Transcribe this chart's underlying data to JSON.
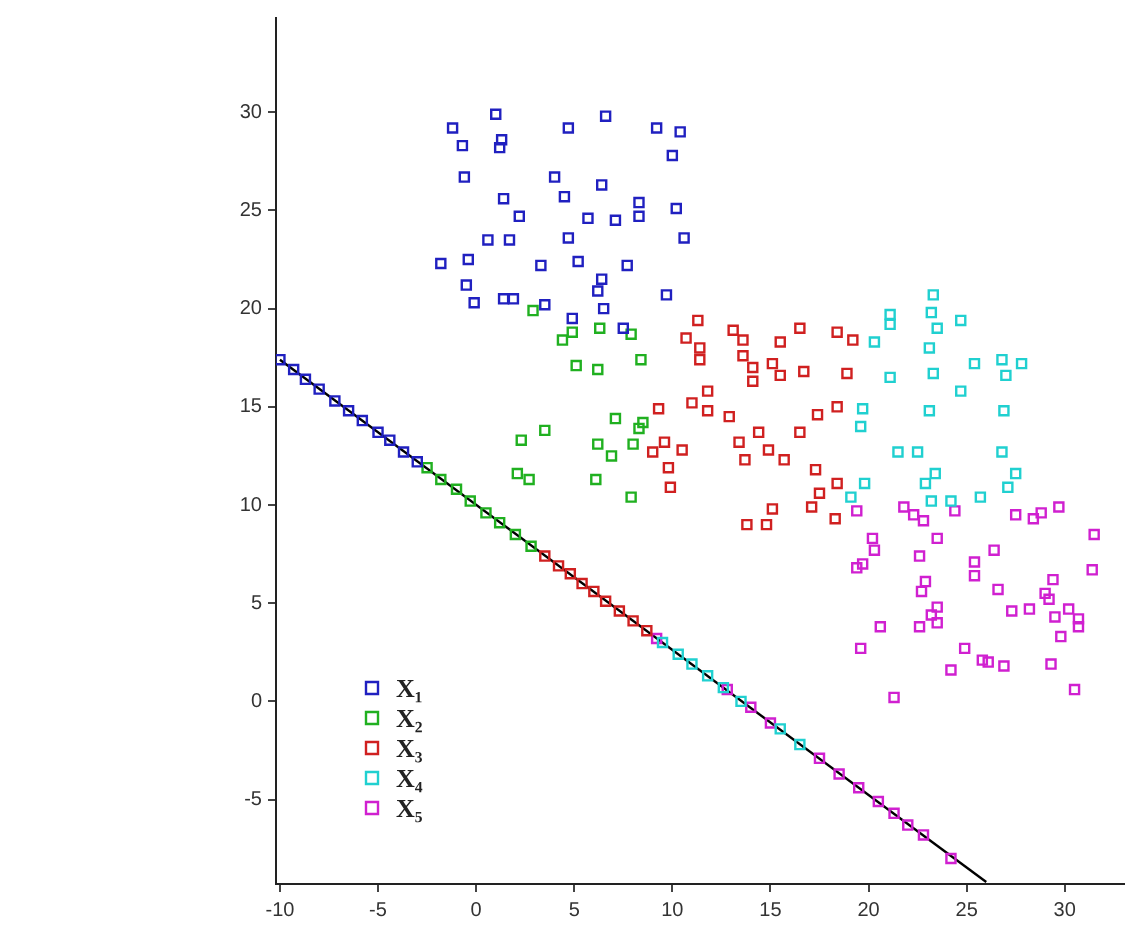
{
  "chart_data": {
    "type": "scatter",
    "xlim": [
      -10.2,
      33
    ],
    "ylim": [
      -9.3,
      34.8
    ],
    "xticks": [
      -10,
      -5,
      0,
      5,
      10,
      15,
      20,
      25,
      30
    ],
    "yticks": [
      -5,
      0,
      5,
      10,
      15,
      20,
      25,
      30
    ],
    "grid": false,
    "legend": "bottom left",
    "marker": "square",
    "series": [
      {
        "name": "X₁",
        "color": "#2020c0",
        "x": [
          -1.2,
          1.0,
          -0.7,
          1.3,
          1.2,
          4.7,
          6.6,
          9.2,
          10.4,
          10.0,
          -0.6,
          4.0,
          6.4,
          1.4,
          4.5,
          8.3,
          10.2,
          2.2,
          5.7,
          7.1,
          8.3,
          0.6,
          1.7,
          4.7,
          10.6,
          -1.8,
          -0.4,
          3.3,
          5.2,
          7.7,
          -0.5,
          6.4,
          6.2,
          9.7,
          -0.1,
          1.4,
          1.9,
          3.5,
          6.5,
          4.9,
          7.5,
          -10,
          -9.3,
          -8.7,
          -8,
          -7.2,
          -6.5,
          -5.8,
          -5,
          -4.4,
          -3.7,
          -3
        ],
        "values": [
          29.2,
          29.9,
          28.3,
          28.6,
          28.2,
          29.2,
          29.8,
          29.2,
          29.0,
          27.8,
          26.7,
          26.7,
          26.3,
          25.6,
          25.7,
          25.4,
          25.1,
          24.7,
          24.6,
          24.5,
          24.7,
          23.5,
          23.5,
          23.6,
          23.6,
          22.3,
          22.5,
          22.2,
          22.4,
          22.2,
          21.2,
          21.5,
          20.9,
          20.7,
          20.3,
          20.5,
          20.5,
          20.2,
          20.0,
          19.5,
          19.0,
          17.4,
          16.9,
          16.4,
          15.9,
          15.3,
          14.8,
          14.3,
          13.7,
          13.3,
          12.7,
          12.2
        ]
      },
      {
        "name": "X₂",
        "color": "#20b020",
        "x": [
          2.9,
          4.4,
          4.9,
          6.3,
          7.9,
          5.1,
          6.2,
          8.4,
          7.1,
          8.5,
          8.3,
          3.5,
          2.3,
          6.2,
          8.0,
          6.9,
          2.1,
          2.7,
          6.1,
          7.9,
          -2.5,
          -1.8,
          -1,
          -0.3,
          0.5,
          1.2,
          2,
          2.8
        ],
        "values": [
          19.9,
          18.4,
          18.8,
          19.0,
          18.7,
          17.1,
          16.9,
          17.4,
          14.4,
          14.2,
          13.9,
          13.8,
          13.3,
          13.1,
          13.1,
          12.5,
          11.6,
          11.3,
          11.3,
          10.4,
          11.9,
          11.3,
          10.8,
          10.2,
          9.6,
          9.1,
          8.5,
          7.9
        ]
      },
      {
        "name": "X₃",
        "color": "#d02020",
        "x": [
          11.3,
          10.7,
          13.1,
          13.6,
          11.4,
          11.4,
          13.6,
          14.1,
          14.1,
          15.1,
          15.5,
          15.5,
          16.5,
          16.7,
          18.4,
          19.2,
          18.9,
          11.8,
          11.0,
          11.8,
          9.3,
          12.9,
          9.6,
          9.0,
          10.5,
          9.8,
          9.9,
          13.4,
          14.4,
          13.7,
          14.9,
          15.7,
          16.5,
          17.4,
          18.4,
          17.3,
          18.4,
          17.5,
          17.1,
          15.1,
          13.8,
          14.8,
          18.3,
          3.5,
          4.2,
          4.8,
          5.4,
          6,
          6.6,
          7.3,
          8,
          8.7
        ],
        "values": [
          19.4,
          18.5,
          18.9,
          18.4,
          18.0,
          17.4,
          17.6,
          17.0,
          16.3,
          17.2,
          16.6,
          18.3,
          19.0,
          16.8,
          18.8,
          18.4,
          16.7,
          15.8,
          15.2,
          14.8,
          14.9,
          14.5,
          13.2,
          12.7,
          12.8,
          11.9,
          10.9,
          13.2,
          13.7,
          12.3,
          12.8,
          12.3,
          13.7,
          14.6,
          15.0,
          11.8,
          11.1,
          10.6,
          9.9,
          9.8,
          9.0,
          9.0,
          9.3,
          7.4,
          6.9,
          6.5,
          6.0,
          5.6,
          5.1,
          4.6,
          4.1,
          3.6
        ]
      },
      {
        "name": "X₄",
        "color": "#20d0d0",
        "x": [
          23.3,
          21.1,
          21.1,
          23.2,
          23.5,
          24.7,
          20.3,
          23.1,
          25.4,
          26.8,
          27.8,
          27.0,
          21.1,
          23.3,
          24.7,
          19.7,
          19.6,
          23.1,
          26.9,
          21.5,
          22.5,
          26.8,
          19.8,
          23.4,
          22.9,
          27.5,
          27.1,
          19.1,
          23.2,
          24.2,
          25.7,
          9.5,
          10.3,
          11,
          11.8,
          12.6,
          13.5,
          15.5,
          16.5
        ],
        "values": [
          20.7,
          19.7,
          19.2,
          19.8,
          19.0,
          19.4,
          18.3,
          18.0,
          17.2,
          17.4,
          17.2,
          16.6,
          16.5,
          16.7,
          15.8,
          14.9,
          14.0,
          14.8,
          14.8,
          12.7,
          12.7,
          12.7,
          11.1,
          11.6,
          11.1,
          11.6,
          10.9,
          10.4,
          10.2,
          10.2,
          10.4,
          3.0,
          2.4,
          1.9,
          1.3,
          0.7,
          0.0,
          -1.4,
          -2.2
        ]
      },
      {
        "name": "X₅",
        "color": "#d020d0",
        "x": [
          19.4,
          21.8,
          22.3,
          22.8,
          24.4,
          27.5,
          28.4,
          28.8,
          29.7,
          31.5,
          20.2,
          20.3,
          23.5,
          22.6,
          26.4,
          25.4,
          25.4,
          19.4,
          19.7,
          31.4,
          22.9,
          22.7,
          26.6,
          29.4,
          29.0,
          29.2,
          23.5,
          23.2,
          23.5,
          22.6,
          20.6,
          27.3,
          28.2,
          30.2,
          29.5,
          30.7,
          30.7,
          29.8,
          19.6,
          24.9,
          25.8,
          26.1,
          26.9,
          24.2,
          29.3,
          30.5,
          21.3,
          9.2,
          12.8,
          14,
          15,
          17.5,
          18.5,
          19.5,
          20.5,
          21.3,
          22,
          22.8,
          24.2
        ],
        "values": [
          9.7,
          9.9,
          9.5,
          9.2,
          9.7,
          9.5,
          9.3,
          9.6,
          9.9,
          8.5,
          8.3,
          7.7,
          8.3,
          7.4,
          7.7,
          7.1,
          6.4,
          6.8,
          7.0,
          6.7,
          6.1,
          5.6,
          5.7,
          6.2,
          5.5,
          5.2,
          4.8,
          4.4,
          4.0,
          3.8,
          3.8,
          4.6,
          4.7,
          4.7,
          4.3,
          4.2,
          3.8,
          3.3,
          2.7,
          2.7,
          2.1,
          2.0,
          1.8,
          1.6,
          1.9,
          0.6,
          0.2,
          3.2,
          0.6,
          -0.3,
          -1.1,
          -2.9,
          -3.7,
          -4.4,
          -5.1,
          -5.7,
          -6.3,
          -6.8,
          -8.0
        ]
      },
      {
        "type": "line",
        "color": "#000000",
        "marker": "none",
        "x": [
          -10,
          26
        ],
        "values": [
          17.4,
          -9.2
        ]
      }
    ]
  }
}
